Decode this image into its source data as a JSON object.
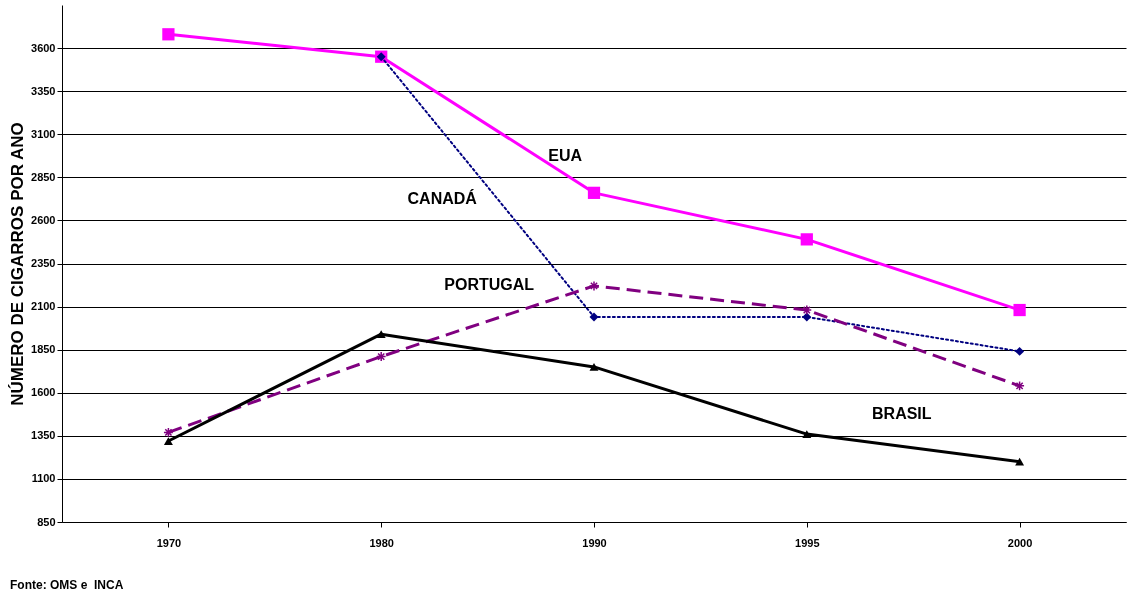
{
  "chart_data": {
    "type": "line",
    "ylabel": "NÚMERO DE CIGARROS POR ANO",
    "categories": [
      "1970",
      "1980",
      "1990",
      "1995",
      "2000"
    ],
    "ylim": [
      850,
      3850
    ],
    "yticks": [
      850,
      1100,
      1350,
      1600,
      1850,
      2100,
      2350,
      2600,
      2850,
      3100,
      3350,
      3600
    ],
    "grid": "y",
    "legend": false,
    "series": [
      {
        "name": "EUA",
        "color": "#ff00ff",
        "marker": "square",
        "line_style": "solid",
        "values": [
          3680,
          3550,
          2760,
          2490,
          2080
        ]
      },
      {
        "name": "CANADÁ",
        "color": "#000080",
        "marker": "diamond",
        "line_style": "dotted",
        "values": [
          null,
          3550,
          2040,
          2040,
          1840
        ]
      },
      {
        "name": "PORTUGAL",
        "color": "#800080",
        "marker": "cross",
        "line_style": "dashed",
        "values": [
          1370,
          1810,
          2220,
          2080,
          1640
        ]
      },
      {
        "name": "BRASIL",
        "color": "#000000",
        "marker": "triangle",
        "line_style": "solid",
        "values": [
          1320,
          1940,
          1750,
          1360,
          1200
        ]
      }
    ],
    "annotations": [
      "Fonte: OMS e  INCA"
    ]
  }
}
